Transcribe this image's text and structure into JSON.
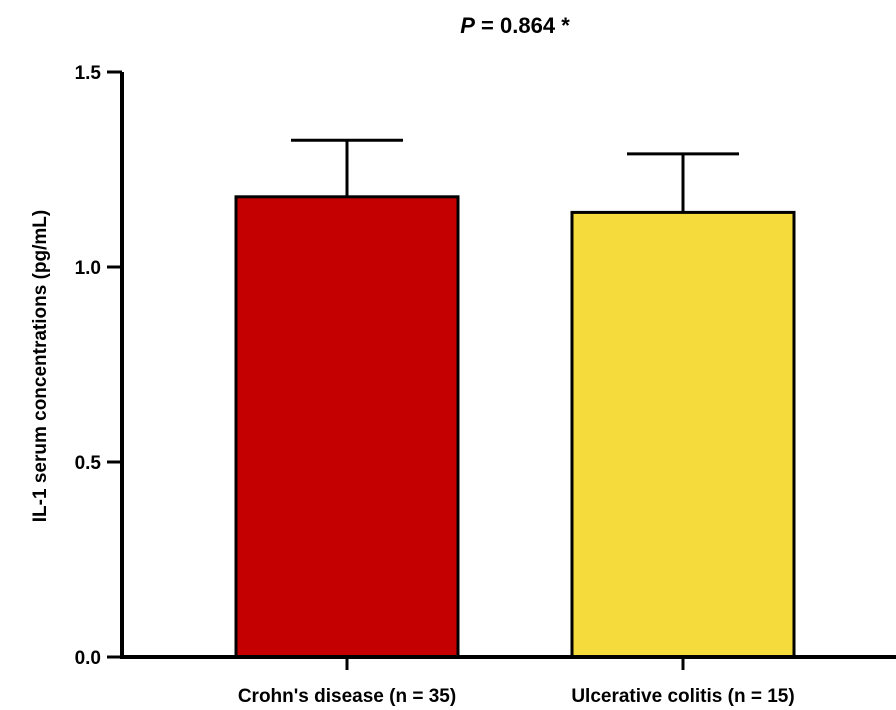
{
  "chart_data": {
    "type": "bar",
    "title_prefix": "P",
    "title_value": "= 0.864",
    "title_suffix": "*",
    "ylabel": "IL-1   serum concentrations (pg/mL)",
    "xlabel": "",
    "ylim": [
      0,
      1.5
    ],
    "yticks": [
      "0.0",
      "0.5",
      "1.0",
      "1.5"
    ],
    "categories": [
      "Crohn's disease (n = 35)",
      "Ulcerative colitis (n = 15)"
    ],
    "values": [
      1.18,
      1.14
    ],
    "error_upper": [
      0.145,
      0.15
    ],
    "colors": [
      "#c50000",
      "#f5dc3c"
    ],
    "grid": false
  }
}
